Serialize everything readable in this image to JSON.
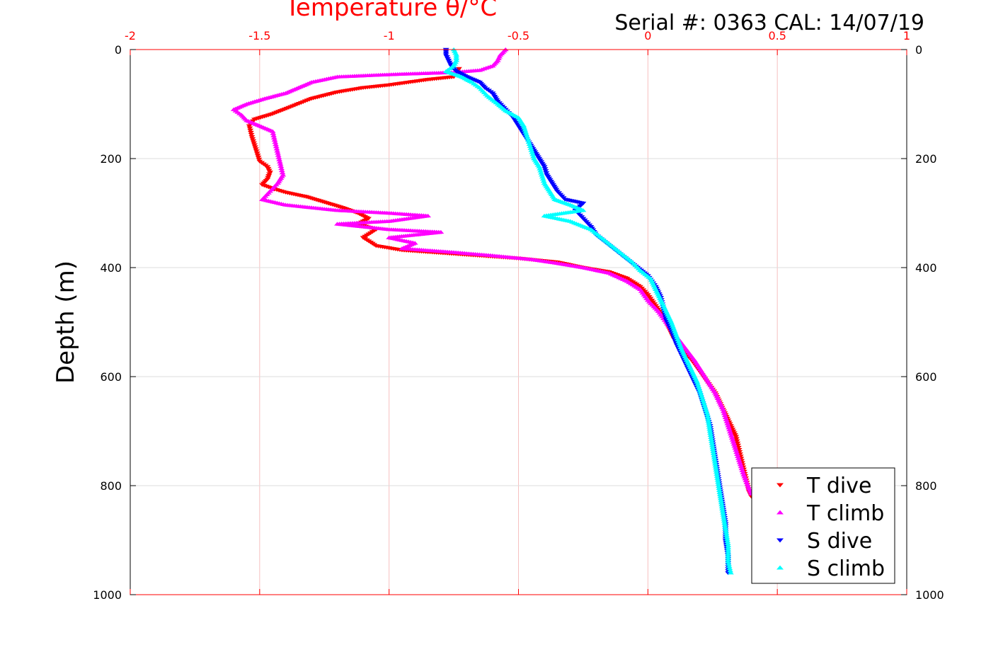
{
  "serial_label": "Serial #: 0363  CAL: 14/07/19",
  "chart_data": {
    "type": "scatter",
    "title": "",
    "xlabel": "Temperature θ/°C",
    "ylabel": "Depth (m)",
    "xlim": [
      -2,
      1
    ],
    "ylim": [
      0,
      1000
    ],
    "y_reversed": true,
    "x_axis_position": "top",
    "xticks": [
      "-2",
      "-1.5",
      "-1",
      "-0.5",
      "0",
      "0.5",
      "1"
    ],
    "yticks": [
      "0",
      "200",
      "400",
      "600",
      "800",
      "1000"
    ],
    "grid": true,
    "legend_position": "bottom-right",
    "colors": {
      "axis_x": "#ff0000",
      "axis_y": "#000000"
    },
    "series": [
      {
        "name": "T dive",
        "color": "#ff0000",
        "marker": "triangle-down",
        "points": [
          [
            -0.73,
            35
          ],
          [
            -0.75,
            50
          ],
          [
            -0.85,
            55
          ],
          [
            -1.0,
            65
          ],
          [
            -1.1,
            70
          ],
          [
            -1.2,
            78
          ],
          [
            -1.3,
            90
          ],
          [
            -1.38,
            105
          ],
          [
            -1.45,
            118
          ],
          [
            -1.52,
            128
          ],
          [
            -1.54,
            140
          ],
          [
            -1.53,
            160
          ],
          [
            -1.52,
            175
          ],
          [
            -1.51,
            190
          ],
          [
            -1.5,
            205
          ],
          [
            -1.47,
            215
          ],
          [
            -1.46,
            225
          ],
          [
            -1.47,
            238
          ],
          [
            -1.49,
            248
          ],
          [
            -1.45,
            255
          ],
          [
            -1.4,
            262
          ],
          [
            -1.32,
            270
          ],
          [
            -1.25,
            280
          ],
          [
            -1.18,
            290
          ],
          [
            -1.12,
            300
          ],
          [
            -1.08,
            310
          ],
          [
            -1.12,
            320
          ],
          [
            -1.05,
            330
          ],
          [
            -1.1,
            345
          ],
          [
            -1.05,
            360
          ],
          [
            -0.95,
            368
          ],
          [
            -0.8,
            373
          ],
          [
            -0.65,
            378
          ],
          [
            -0.5,
            383
          ],
          [
            -0.35,
            390
          ],
          [
            -0.25,
            400
          ],
          [
            -0.15,
            408
          ],
          [
            -0.08,
            420
          ],
          [
            -0.03,
            435
          ],
          [
            0.0,
            450
          ],
          [
            0.03,
            470
          ],
          [
            0.06,
            490
          ],
          [
            0.08,
            510
          ],
          [
            0.1,
            530
          ],
          [
            0.13,
            550
          ],
          [
            0.17,
            570
          ],
          [
            0.2,
            590
          ],
          [
            0.23,
            610
          ],
          [
            0.26,
            630
          ],
          [
            0.28,
            650
          ],
          [
            0.3,
            670
          ],
          [
            0.32,
            690
          ],
          [
            0.34,
            710
          ],
          [
            0.35,
            730
          ],
          [
            0.36,
            750
          ],
          [
            0.37,
            770
          ],
          [
            0.38,
            790
          ],
          [
            0.39,
            810
          ],
          [
            0.4,
            820
          ]
        ]
      },
      {
        "name": "T climb",
        "color": "#ff00ff",
        "marker": "triangle-up",
        "points": [
          [
            -0.55,
            0
          ],
          [
            -0.57,
            10
          ],
          [
            -0.58,
            20
          ],
          [
            -0.6,
            30
          ],
          [
            -0.65,
            38
          ],
          [
            -0.75,
            42
          ],
          [
            -0.95,
            45
          ],
          [
            -1.1,
            48
          ],
          [
            -1.2,
            50
          ],
          [
            -1.3,
            60
          ],
          [
            -1.35,
            70
          ],
          [
            -1.4,
            80
          ],
          [
            -1.48,
            90
          ],
          [
            -1.55,
            100
          ],
          [
            -1.6,
            110
          ],
          [
            -1.57,
            120
          ],
          [
            -1.55,
            130
          ],
          [
            -1.5,
            140
          ],
          [
            -1.45,
            150
          ],
          [
            -1.44,
            170
          ],
          [
            -1.43,
            190
          ],
          [
            -1.42,
            210
          ],
          [
            -1.41,
            230
          ],
          [
            -1.43,
            245
          ],
          [
            -1.46,
            260
          ],
          [
            -1.49,
            275
          ],
          [
            -1.4,
            285
          ],
          [
            -1.3,
            290
          ],
          [
            -1.2,
            295
          ],
          [
            -1.0,
            300
          ],
          [
            -0.85,
            305
          ],
          [
            -1.0,
            315
          ],
          [
            -1.2,
            320
          ],
          [
            -1.0,
            330
          ],
          [
            -0.8,
            335
          ],
          [
            -1.0,
            345
          ],
          [
            -0.9,
            355
          ],
          [
            -0.95,
            365
          ],
          [
            -0.75,
            372
          ],
          [
            -0.6,
            378
          ],
          [
            -0.45,
            385
          ],
          [
            -0.35,
            392
          ],
          [
            -0.25,
            400
          ],
          [
            -0.15,
            410
          ],
          [
            -0.08,
            425
          ],
          [
            -0.03,
            440
          ],
          [
            0.0,
            460
          ],
          [
            0.04,
            480
          ],
          [
            0.07,
            500
          ],
          [
            0.1,
            520
          ],
          [
            0.14,
            545
          ],
          [
            0.18,
            570
          ],
          [
            0.22,
            600
          ],
          [
            0.26,
            630
          ],
          [
            0.29,
            660
          ],
          [
            0.31,
            690
          ],
          [
            0.33,
            720
          ],
          [
            0.35,
            750
          ],
          [
            0.37,
            780
          ],
          [
            0.39,
            805
          ],
          [
            0.4,
            815
          ]
        ]
      },
      {
        "name": "S dive",
        "color": "#0000ff",
        "marker": "triangle-down",
        "points": [
          [
            -0.78,
            0
          ],
          [
            -0.78,
            10
          ],
          [
            -0.77,
            20
          ],
          [
            -0.76,
            30
          ],
          [
            -0.74,
            40
          ],
          [
            -0.7,
            50
          ],
          [
            -0.65,
            60
          ],
          [
            -0.63,
            70
          ],
          [
            -0.6,
            80
          ],
          [
            -0.58,
            95
          ],
          [
            -0.55,
            110
          ],
          [
            -0.52,
            125
          ],
          [
            -0.5,
            140
          ],
          [
            -0.48,
            155
          ],
          [
            -0.46,
            170
          ],
          [
            -0.44,
            185
          ],
          [
            -0.42,
            200
          ],
          [
            -0.4,
            215
          ],
          [
            -0.39,
            230
          ],
          [
            -0.37,
            245
          ],
          [
            -0.35,
            260
          ],
          [
            -0.32,
            275
          ],
          [
            -0.25,
            282
          ],
          [
            -0.28,
            295
          ],
          [
            -0.25,
            310
          ],
          [
            -0.22,
            325
          ],
          [
            -0.2,
            340
          ],
          [
            -0.16,
            355
          ],
          [
            -0.12,
            370
          ],
          [
            -0.08,
            385
          ],
          [
            -0.04,
            400
          ],
          [
            0.0,
            415
          ],
          [
            0.03,
            435
          ],
          [
            0.05,
            455
          ],
          [
            0.06,
            475
          ],
          [
            0.07,
            495
          ],
          [
            0.09,
            515
          ],
          [
            0.11,
            540
          ],
          [
            0.14,
            570
          ],
          [
            0.17,
            600
          ],
          [
            0.2,
            630
          ],
          [
            0.22,
            660
          ],
          [
            0.24,
            690
          ],
          [
            0.25,
            720
          ],
          [
            0.26,
            750
          ],
          [
            0.27,
            780
          ],
          [
            0.28,
            810
          ],
          [
            0.29,
            840
          ],
          [
            0.3,
            870
          ],
          [
            0.3,
            900
          ],
          [
            0.31,
            930
          ],
          [
            0.31,
            960
          ]
        ]
      },
      {
        "name": "S climb",
        "color": "#00ffff",
        "marker": "triangle-up",
        "points": [
          [
            -0.75,
            0
          ],
          [
            -0.74,
            10
          ],
          [
            -0.74,
            20
          ],
          [
            -0.75,
            30
          ],
          [
            -0.78,
            40
          ],
          [
            -0.72,
            50
          ],
          [
            -0.68,
            60
          ],
          [
            -0.65,
            70
          ],
          [
            -0.62,
            85
          ],
          [
            -0.58,
            100
          ],
          [
            -0.55,
            112
          ],
          [
            -0.5,
            125
          ],
          [
            -0.48,
            140
          ],
          [
            -0.47,
            155
          ],
          [
            -0.46,
            170
          ],
          [
            -0.45,
            185
          ],
          [
            -0.44,
            200
          ],
          [
            -0.42,
            215
          ],
          [
            -0.41,
            230
          ],
          [
            -0.4,
            245
          ],
          [
            -0.38,
            260
          ],
          [
            -0.36,
            275
          ],
          [
            -0.3,
            285
          ],
          [
            -0.25,
            295
          ],
          [
            -0.4,
            305
          ],
          [
            -0.3,
            315
          ],
          [
            -0.22,
            330
          ],
          [
            -0.18,
            345
          ],
          [
            -0.14,
            360
          ],
          [
            -0.1,
            375
          ],
          [
            -0.06,
            390
          ],
          [
            -0.03,
            405
          ],
          [
            0.01,
            420
          ],
          [
            0.03,
            440
          ],
          [
            0.05,
            460
          ],
          [
            0.07,
            480
          ],
          [
            0.09,
            500
          ],
          [
            0.11,
            525
          ],
          [
            0.13,
            550
          ],
          [
            0.16,
            580
          ],
          [
            0.19,
            610
          ],
          [
            0.21,
            640
          ],
          [
            0.23,
            670
          ],
          [
            0.24,
            700
          ],
          [
            0.25,
            730
          ],
          [
            0.26,
            760
          ],
          [
            0.27,
            790
          ],
          [
            0.28,
            820
          ],
          [
            0.29,
            850
          ],
          [
            0.3,
            880
          ],
          [
            0.31,
            910
          ],
          [
            0.31,
            940
          ],
          [
            0.32,
            960
          ]
        ]
      }
    ]
  }
}
